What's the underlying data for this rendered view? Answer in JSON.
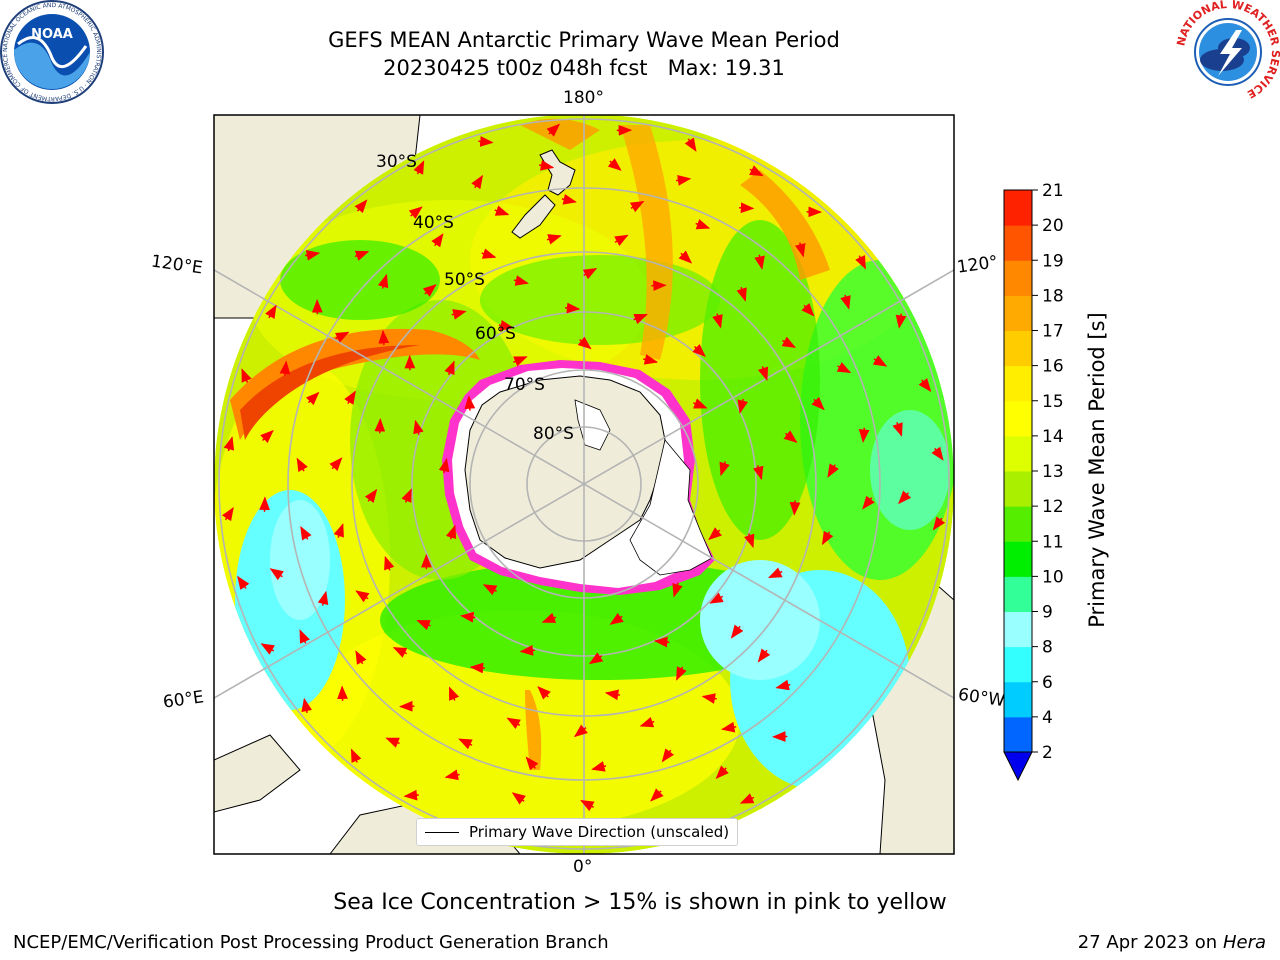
{
  "title": {
    "line1": "GEFS MEAN Antarctic Primary Wave Mean Period",
    "line2": "20230425 t00z 048h fcst   Max: 19.31"
  },
  "logos": {
    "left": "noaa-logo",
    "left_text": "NOAA",
    "left_ring_text": "NATIONAL OCEANIC AND ATMOSPHERIC ADMINISTRATION · U.S. DEPARTMENT OF COMMERCE",
    "right": "nws-logo",
    "right_ring_text": "NATIONAL WEATHER SERVICE"
  },
  "map": {
    "projection": "south-polar-stereographic",
    "longitude_labels": {
      "top": "180°",
      "bottom": "0°",
      "upper_left": "120°E",
      "lower_left": "60°E",
      "upper_right": "120°",
      "lower_right": "60°W"
    },
    "latitude_labels": [
      "30°S",
      "40°S",
      "50°S",
      "60°S",
      "70°S",
      "80°S"
    ],
    "legend": "Primary Wave Direction (unscaled)",
    "arrow_color": "#ff0000",
    "land_color": "#efedda",
    "sea_ice_color": "#ff33cc"
  },
  "colorbar": {
    "label": "Primary Wave Mean Period [s]",
    "ticks": [
      "2",
      "4",
      "6",
      "8",
      "9",
      "10",
      "11",
      "12",
      "13",
      "14",
      "15",
      "16",
      "17",
      "18",
      "19",
      "20",
      "21"
    ],
    "colors": [
      "#0066ff",
      "#00ccff",
      "#33ffff",
      "#99ffff",
      "#33ff99",
      "#00ee00",
      "#55ee00",
      "#aaee00",
      "#ddff00",
      "#ffff00",
      "#ffee00",
      "#ffcc00",
      "#ffaa00",
      "#ff8800",
      "#ff5500",
      "#ff2200"
    ],
    "extend_color": "#0000ee"
  },
  "caption": "Sea Ice Concentration > 15% is shown in pink to yellow",
  "footer": {
    "left": "NCEP/EMC/Verification Post Processing Product Generation Branch",
    "date": "27 Apr 2023 on",
    "machine": "Hera"
  }
}
